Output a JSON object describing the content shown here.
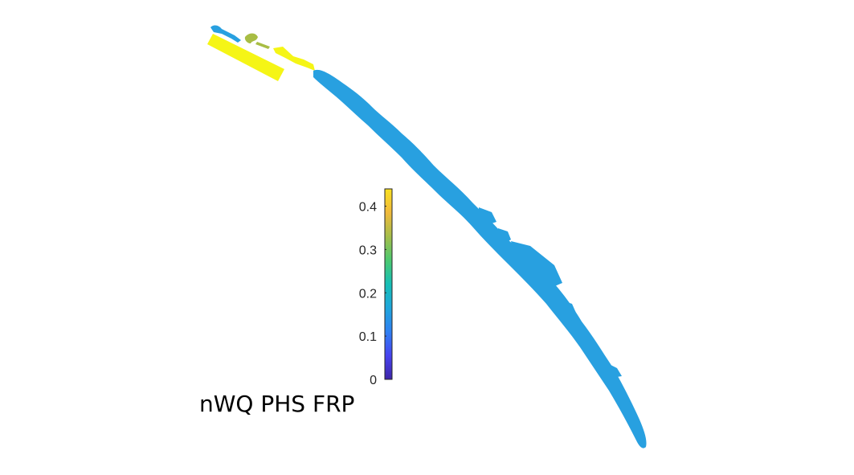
{
  "title": "nWQ PHS FRP",
  "colorbar": {
    "min": 0,
    "max": 0.44,
    "ticks": [
      "0",
      "0.1",
      "0.2",
      "0.3",
      "0.4"
    ],
    "tick_values": [
      0,
      0.1,
      0.2,
      0.3,
      0.4
    ],
    "colormap": [
      "#3e26a8",
      "#4743f0",
      "#2f80f2",
      "#1fa6dc",
      "#16bfb6",
      "#4cc970",
      "#a5be4a",
      "#f0ba3b",
      "#f9e021"
    ]
  },
  "colors": {
    "river_main": "#28a0e0",
    "river_upstream": "#f5f516",
    "river_mid": "#a8bd44"
  }
}
